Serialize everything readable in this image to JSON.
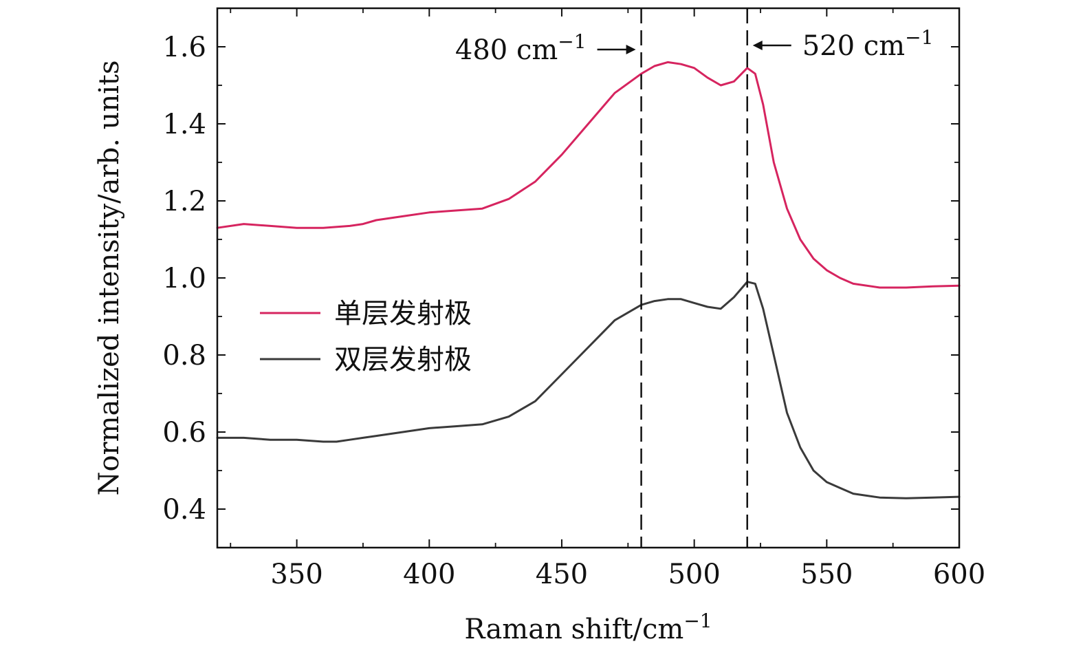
{
  "chart_data": {
    "type": "line",
    "xlabel": "Raman shift/cm",
    "xlabel_sup": "−1",
    "ylabel": "Normalized intensity/arb. units",
    "xlim": [
      320,
      600
    ],
    "ylim": [
      0.3,
      1.7
    ],
    "x_ticks": [
      350,
      400,
      450,
      500,
      550,
      600
    ],
    "x_tick_labels": [
      "350",
      "400",
      "450",
      "500",
      "550",
      "600"
    ],
    "y_ticks": [
      0.4,
      0.6,
      0.8,
      1.0,
      1.2,
      1.4,
      1.6
    ],
    "y_tick_labels": [
      "0.4",
      "0.6",
      "0.8",
      "1.0",
      "1.2",
      "1.4",
      "1.6"
    ],
    "grid": false,
    "legend_position": "center-left",
    "reference_lines": [
      {
        "x": 480,
        "label": "480 cm",
        "label_sup": "−1",
        "arrow": "right"
      },
      {
        "x": 520,
        "label": "520 cm",
        "label_sup": "−1",
        "arrow": "left"
      }
    ],
    "series": [
      {
        "name": "单层发射极",
        "color": "#d6245f",
        "x": [
          320,
          330,
          340,
          350,
          360,
          370,
          375,
          380,
          390,
          400,
          410,
          420,
          430,
          440,
          450,
          460,
          470,
          480,
          485,
          490,
          495,
          500,
          505,
          510,
          515,
          520,
          523,
          526,
          530,
          535,
          540,
          545,
          550,
          555,
          560,
          570,
          580,
          590,
          600
        ],
        "y": [
          1.13,
          1.14,
          1.135,
          1.13,
          1.13,
          1.135,
          1.14,
          1.15,
          1.16,
          1.17,
          1.175,
          1.18,
          1.205,
          1.25,
          1.32,
          1.4,
          1.48,
          1.53,
          1.55,
          1.56,
          1.555,
          1.545,
          1.52,
          1.5,
          1.51,
          1.545,
          1.53,
          1.45,
          1.3,
          1.18,
          1.1,
          1.05,
          1.02,
          1.0,
          0.985,
          0.975,
          0.975,
          0.978,
          0.98
        ]
      },
      {
        "name": "双层发射极",
        "color": "#3a3a3a",
        "x": [
          320,
          330,
          340,
          350,
          360,
          365,
          370,
          375,
          380,
          390,
          400,
          410,
          420,
          430,
          440,
          450,
          460,
          470,
          480,
          485,
          490,
          495,
          500,
          505,
          510,
          515,
          520,
          523,
          526,
          530,
          535,
          540,
          545,
          550,
          555,
          560,
          570,
          580,
          590,
          600
        ],
        "y": [
          0.585,
          0.585,
          0.58,
          0.58,
          0.575,
          0.575,
          0.58,
          0.585,
          0.59,
          0.6,
          0.61,
          0.615,
          0.62,
          0.64,
          0.68,
          0.75,
          0.82,
          0.89,
          0.93,
          0.94,
          0.945,
          0.945,
          0.935,
          0.925,
          0.92,
          0.95,
          0.99,
          0.985,
          0.92,
          0.8,
          0.65,
          0.56,
          0.5,
          0.47,
          0.455,
          0.44,
          0.43,
          0.428,
          0.43,
          0.432
        ]
      }
    ]
  }
}
